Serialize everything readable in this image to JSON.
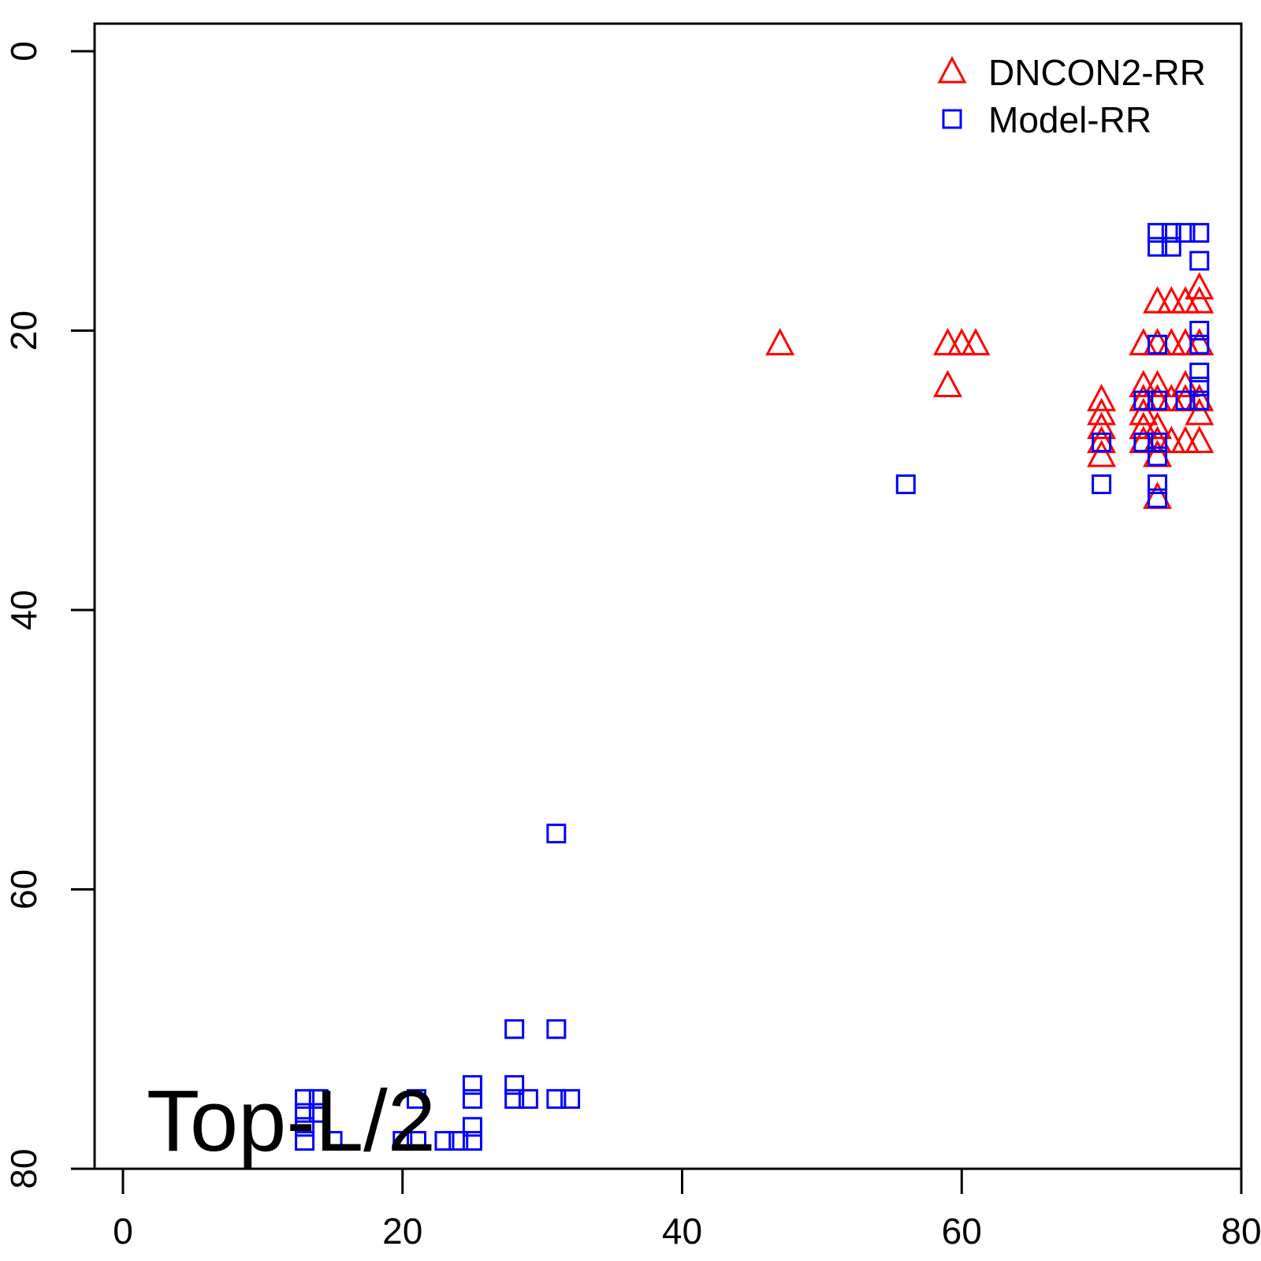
{
  "chart_data": {
    "type": "scatter",
    "title": "",
    "xlabel": "",
    "ylabel": "",
    "xlim": [
      -2,
      80
    ],
    "ylim": [
      80,
      -2
    ],
    "y_reversed": true,
    "x_ticks": [
      "0",
      "20",
      "40",
      "60",
      "80"
    ],
    "y_ticks": [
      "0",
      "20",
      "40",
      "60",
      "80"
    ],
    "annotation": "Top-L/2",
    "legend_position": "top-right",
    "series": [
      {
        "name": "DNCON2-RR",
        "marker": "triangle",
        "color": "#ff0000",
        "points": [
          [
            47,
            21
          ],
          [
            59,
            21
          ],
          [
            60,
            21
          ],
          [
            61,
            21
          ],
          [
            59,
            24
          ],
          [
            70,
            25
          ],
          [
            70,
            26
          ],
          [
            70,
            27
          ],
          [
            70,
            28
          ],
          [
            70,
            29
          ],
          [
            73,
            21
          ],
          [
            73,
            24
          ],
          [
            73,
            25
          ],
          [
            73,
            26
          ],
          [
            73,
            27
          ],
          [
            73,
            28
          ],
          [
            74,
            18
          ],
          [
            74,
            21
          ],
          [
            74,
            24
          ],
          [
            74,
            25
          ],
          [
            74,
            27
          ],
          [
            74,
            28
          ],
          [
            74,
            29
          ],
          [
            74,
            32
          ],
          [
            75,
            18
          ],
          [
            75,
            21
          ],
          [
            75,
            25
          ],
          [
            75,
            28
          ],
          [
            76,
            18
          ],
          [
            76,
            21
          ],
          [
            76,
            24
          ],
          [
            76,
            25
          ],
          [
            76,
            28
          ],
          [
            77,
            17
          ],
          [
            77,
            18
          ],
          [
            77,
            21
          ],
          [
            77,
            25
          ],
          [
            77,
            26
          ],
          [
            77,
            28
          ]
        ]
      },
      {
        "name": "Model-RR",
        "marker": "square",
        "color": "#0000ff",
        "points": [
          [
            13,
            75
          ],
          [
            13,
            76
          ],
          [
            13,
            77
          ],
          [
            13,
            78
          ],
          [
            14,
            75
          ],
          [
            14,
            76
          ],
          [
            15,
            78
          ],
          [
            20,
            78
          ],
          [
            21,
            75
          ],
          [
            21,
            78
          ],
          [
            23,
            78
          ],
          [
            24,
            78
          ],
          [
            25,
            74
          ],
          [
            25,
            75
          ],
          [
            25,
            77
          ],
          [
            25,
            78
          ],
          [
            28,
            70
          ],
          [
            28,
            74
          ],
          [
            28,
            75
          ],
          [
            29,
            75
          ],
          [
            31,
            56
          ],
          [
            31,
            70
          ],
          [
            31,
            75
          ],
          [
            32,
            75
          ],
          [
            56,
            31
          ],
          [
            70,
            28
          ],
          [
            70,
            31
          ],
          [
            73,
            25
          ],
          [
            73,
            28
          ],
          [
            74,
            13
          ],
          [
            74,
            14
          ],
          [
            74,
            21
          ],
          [
            74,
            25
          ],
          [
            74,
            28
          ],
          [
            74,
            29
          ],
          [
            74,
            31
          ],
          [
            74,
            32
          ],
          [
            75,
            13
          ],
          [
            75,
            14
          ],
          [
            76,
            13
          ],
          [
            76,
            25
          ],
          [
            77,
            13
          ],
          [
            77,
            15
          ],
          [
            77,
            20
          ],
          [
            77,
            21
          ],
          [
            77,
            23
          ],
          [
            77,
            24
          ],
          [
            77,
            25
          ]
        ]
      }
    ]
  }
}
